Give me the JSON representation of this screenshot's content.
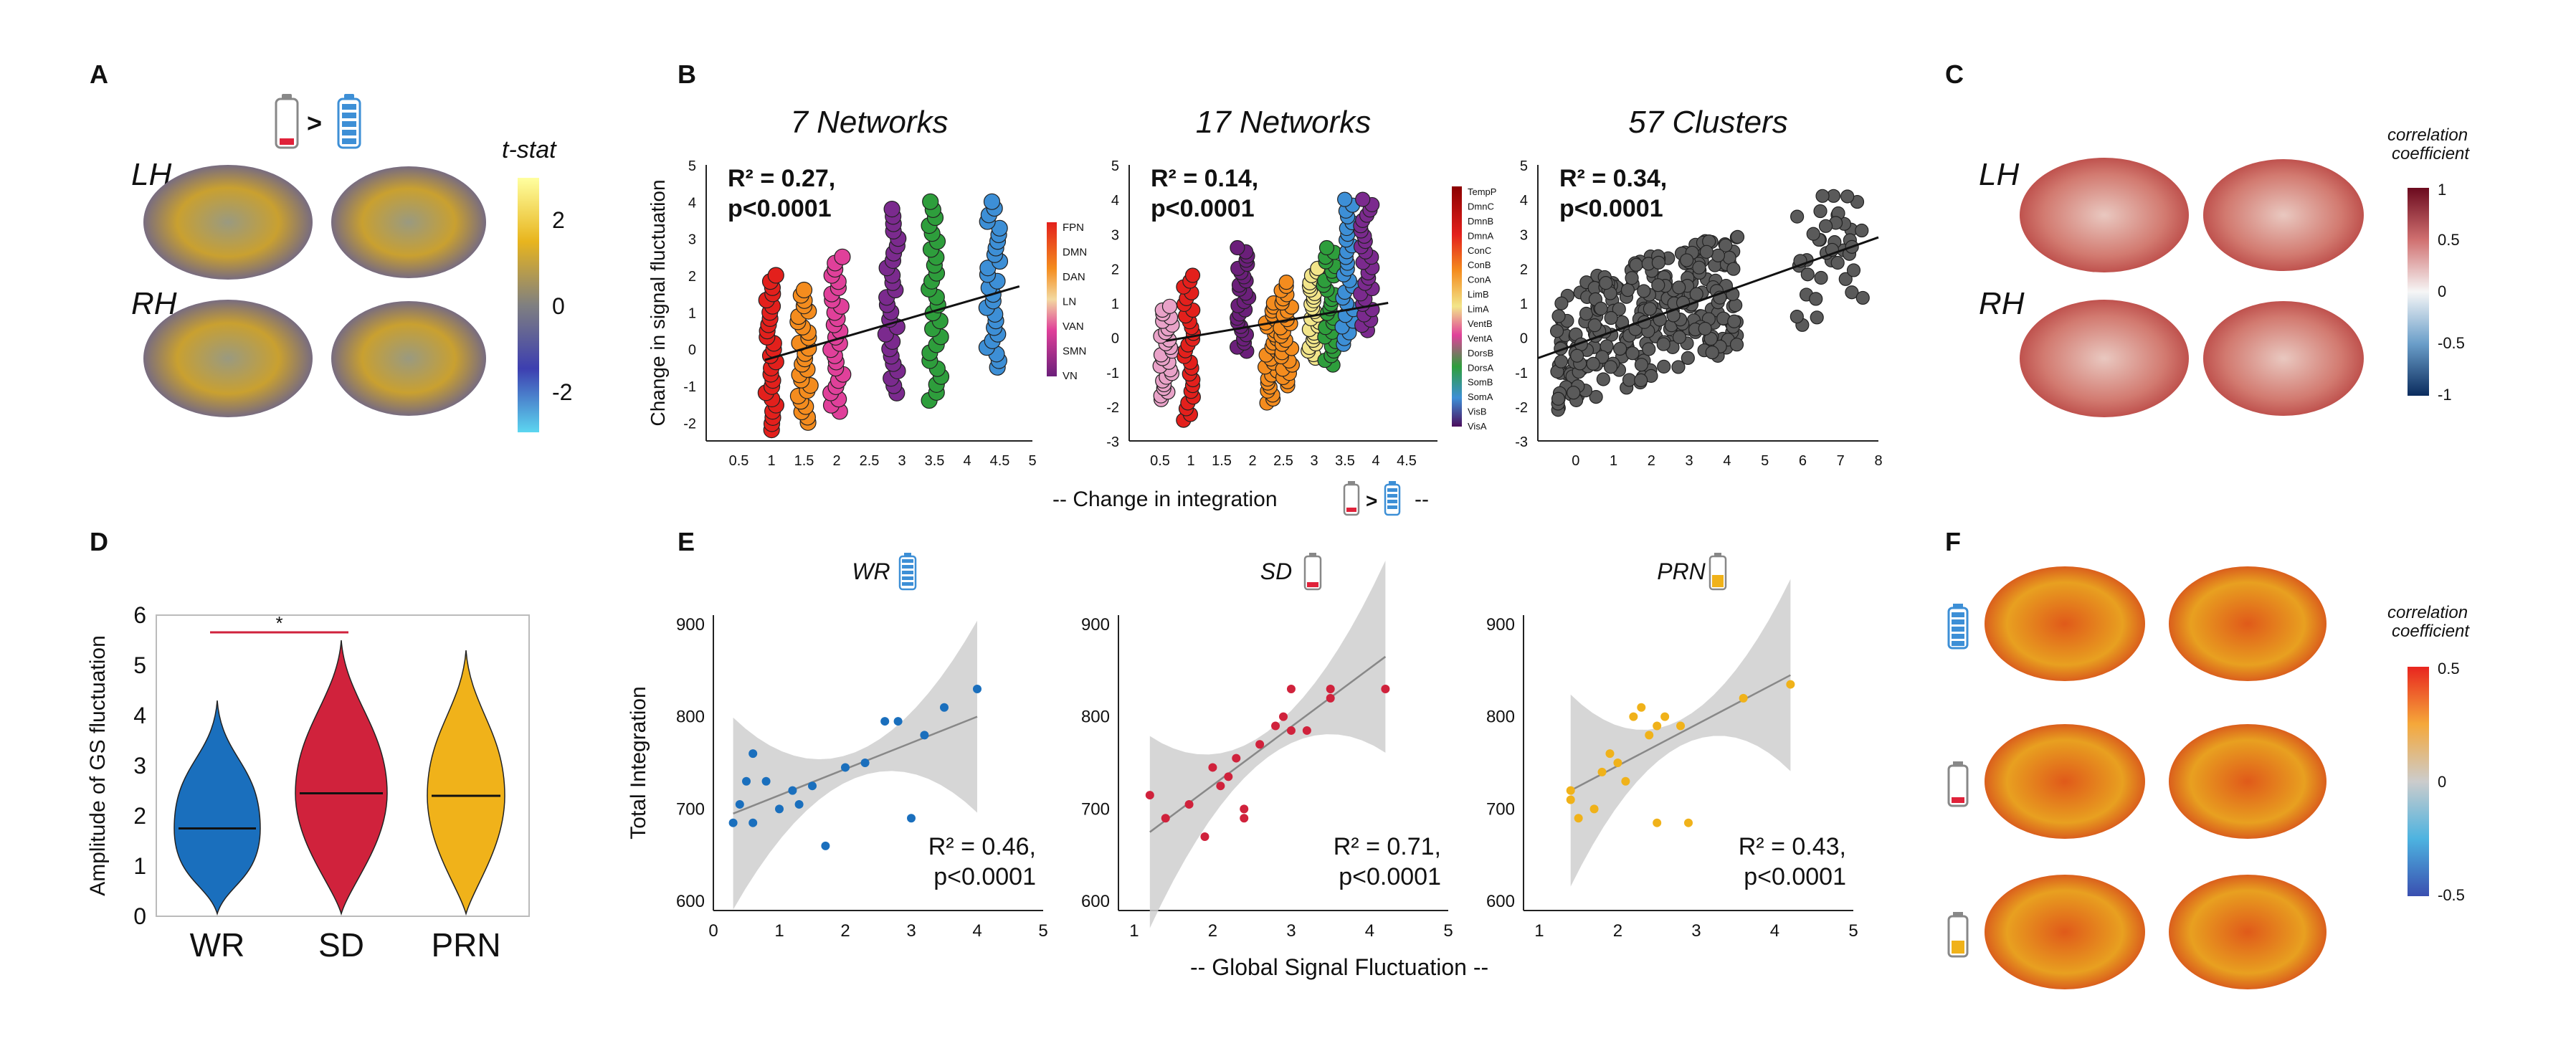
{
  "panels": {
    "A": {
      "letter": "A",
      "lh": "LH",
      "rh": "RH",
      "cbar_title": "t-stat",
      "cbar_ticks": [
        "2",
        "0",
        "-2"
      ]
    },
    "B": {
      "letter": "B",
      "x_caption": "-- Change in integration",
      "ylabel": "Change in signal fluctuation"
    },
    "C": {
      "letter": "C",
      "lh": "LH",
      "rh": "RH",
      "cbar_title_1": "correlation",
      "cbar_title_2": "coefficient",
      "cbar_ticks": [
        "1",
        "0.5",
        "0",
        "-0.5",
        "-1"
      ]
    },
    "D": {
      "letter": "D"
    },
    "E": {
      "letter": "E",
      "x_caption": "-- Global Signal Fluctuation --"
    },
    "F": {
      "letter": "F",
      "cbar_title_1": "correlation",
      "cbar_title_2": "coefficient",
      "cbar_ticks": [
        "0.5",
        "0",
        "-0.5"
      ]
    }
  },
  "symbols": {
    "gt": ">",
    "star": "*"
  },
  "colors": {
    "WR": "#1a6fbd",
    "SD": "#d0223c",
    "PRN": "#f0b21a",
    "battery_full": "#3d8fd6",
    "battery_low": "#e0223a",
    "battery_mid": "#f0b21a",
    "yeo7": [
      "#e3201c",
      "#f48c1e",
      "#e0409a",
      "#7b2a8e",
      "#2e9e3c",
      "#3d8fd6",
      "#6b1f7a"
    ],
    "scatter_gray": "#555555"
  },
  "chart_data": [
    {
      "type": "scatter",
      "title": "7 Networks",
      "ylabel": "Change in signal fluctuation",
      "xlabel": "-- Change in integration",
      "r2": "R² = 0.27,",
      "p": "p<0.0001",
      "xlim": [
        0,
        5
      ],
      "ylim": [
        -2.5,
        5
      ],
      "x_ticks": [
        "0.5",
        "1",
        "1.5",
        "2",
        "2.5",
        "3",
        "3.5",
        "4",
        "4.5",
        "5"
      ],
      "y_ticks": [
        "5",
        "4",
        "3",
        "2",
        "1",
        "0",
        "-1",
        "-2"
      ],
      "groups": [
        {
          "x": 1.0,
          "ymin": -2.2,
          "ymax": 2.0,
          "color": "#e3201c"
        },
        {
          "x": 1.5,
          "ymin": -2.0,
          "ymax": 1.6,
          "color": "#f48c1e"
        },
        {
          "x": 2.0,
          "ymin": -1.7,
          "ymax": 2.5,
          "color": "#e0409a"
        },
        {
          "x": 2.85,
          "ymin": -1.2,
          "ymax": 3.8,
          "color": "#7b2a8e"
        },
        {
          "x": 3.5,
          "ymin": -1.4,
          "ymax": 4.0,
          "color": "#2e9e3c"
        },
        {
          "x": 4.4,
          "ymin": -0.5,
          "ymax": 4.0,
          "color": "#3d8fd6"
        }
      ],
      "fit": [
        [
          0.9,
          -0.3
        ],
        [
          4.8,
          1.7
        ]
      ],
      "legend": [
        "FPN",
        "DMN",
        "DAN",
        "LN",
        "VAN",
        "SMN",
        "VN"
      ]
    },
    {
      "type": "scatter",
      "title": "17 Networks",
      "r2": "R² = 0.14,",
      "p": "p<0.0001",
      "xlim": [
        0,
        5
      ],
      "ylim": [
        -3,
        5
      ],
      "x_ticks": [
        "0.5",
        "1",
        "1.5",
        "2",
        "2.5",
        "3",
        "3.5",
        "4",
        "4.5"
      ],
      "y_ticks": [
        "5",
        "4",
        "3",
        "2",
        "1",
        "0",
        "-1",
        "-2",
        "-3"
      ],
      "groups": [
        {
          "x": 0.6,
          "ymin": -1.8,
          "ymax": 0.9,
          "color": "#e9a2c8"
        },
        {
          "x": 0.95,
          "ymin": -2.4,
          "ymax": 1.8,
          "color": "#e3201c"
        },
        {
          "x": 1.85,
          "ymin": -0.4,
          "ymax": 2.6,
          "color": "#6b1f7a"
        },
        {
          "x": 2.3,
          "ymin": -1.9,
          "ymax": 1.0,
          "color": "#f48c1e"
        },
        {
          "x": 2.55,
          "ymin": -1.4,
          "ymax": 1.6,
          "color": "#f48c1e"
        },
        {
          "x": 3.0,
          "ymin": -0.6,
          "ymax": 2.0,
          "color": "#f2e58a"
        },
        {
          "x": 3.25,
          "ymin": -0.8,
          "ymax": 2.6,
          "color": "#2e9e3c"
        },
        {
          "x": 3.55,
          "ymin": -0.2,
          "ymax": 4.0,
          "color": "#3d8fd6"
        },
        {
          "x": 3.85,
          "ymin": 0.2,
          "ymax": 4.0,
          "color": "#7b2a8e"
        }
      ],
      "fit": [
        [
          0.6,
          -0.1
        ],
        [
          4.2,
          1.0
        ]
      ],
      "legend": [
        "TempP",
        "DmnC",
        "DmnB",
        "DmnA",
        "ConC",
        "ConB",
        "ConA",
        "LimB",
        "LimA",
        "VentB",
        "VentA",
        "DorsB",
        "DorsA",
        "SomB",
        "SomA",
        "VisB",
        "VisA"
      ]
    },
    {
      "type": "scatter",
      "title": "57 Clusters",
      "r2": "R² = 0.34,",
      "p": "p<0.0001",
      "xlim": [
        -1,
        8
      ],
      "ylim": [
        -3,
        5
      ],
      "x_ticks": [
        "0",
        "1",
        "2",
        "3",
        "4",
        "5",
        "6",
        "7",
        "8"
      ],
      "y_ticks": [
        "5",
        "4",
        "3",
        "2",
        "1",
        "0",
        "-1",
        "-2",
        "-3"
      ],
      "fit": [
        [
          -1,
          -0.6
        ],
        [
          8,
          2.9
        ]
      ]
    },
    {
      "type": "violin",
      "ylabel": "Amplitude of GS fluctuation",
      "categories": [
        "WR",
        "SD",
        "PRN"
      ],
      "medians": [
        1.75,
        2.45,
        2.4
      ],
      "ranges": [
        [
          0,
          4.3
        ],
        [
          0,
          5.5
        ],
        [
          0,
          5.3
        ]
      ],
      "ylim": [
        0,
        6
      ],
      "y_ticks": [
        "6",
        "5",
        "4",
        "3",
        "2",
        "1",
        "0"
      ]
    },
    {
      "type": "scatter",
      "title": "WR",
      "ylabel": "Total Integration",
      "r2": "R² = 0.46,",
      "p": "p<0.0001",
      "xlim": [
        0,
        5
      ],
      "ylim": [
        590,
        910
      ],
      "x_ticks": [
        "0",
        "1",
        "2",
        "3",
        "4",
        "5"
      ],
      "y_ticks": [
        "900",
        "800",
        "700",
        "600"
      ],
      "points": [
        [
          0.3,
          685
        ],
        [
          0.4,
          705
        ],
        [
          0.5,
          730
        ],
        [
          0.6,
          685
        ],
        [
          0.6,
          760
        ],
        [
          0.8,
          730
        ],
        [
          1.0,
          700
        ],
        [
          1.2,
          720
        ],
        [
          1.3,
          705
        ],
        [
          1.5,
          725
        ],
        [
          1.7,
          660
        ],
        [
          2.0,
          745
        ],
        [
          2.3,
          750
        ],
        [
          2.6,
          795
        ],
        [
          2.8,
          795
        ],
        [
          3.0,
          690
        ],
        [
          3.2,
          780
        ],
        [
          3.5,
          810
        ],
        [
          4.0,
          830
        ]
      ],
      "fit": [
        [
          0.3,
          695
        ],
        [
          4.0,
          800
        ]
      ]
    },
    {
      "type": "scatter",
      "title": "SD",
      "xlabel": "-- Global Signal Fluctuation --",
      "r2": "R² = 0.71,",
      "p": "p<0.0001",
      "xlim": [
        0.8,
        5
      ],
      "ylim": [
        590,
        910
      ],
      "x_ticks": [
        "1",
        "2",
        "3",
        "4",
        "5"
      ],
      "y_ticks": [
        "900",
        "800",
        "700",
        "600"
      ],
      "points": [
        [
          1.2,
          715
        ],
        [
          1.4,
          690
        ],
        [
          1.7,
          705
        ],
        [
          1.9,
          670
        ],
        [
          2.0,
          745
        ],
        [
          2.1,
          725
        ],
        [
          2.2,
          735
        ],
        [
          2.3,
          755
        ],
        [
          2.4,
          690
        ],
        [
          2.4,
          700
        ],
        [
          2.6,
          770
        ],
        [
          2.8,
          790
        ],
        [
          2.9,
          800
        ],
        [
          3.0,
          785
        ],
        [
          3.0,
          830
        ],
        [
          3.2,
          785
        ],
        [
          3.5,
          820
        ],
        [
          3.5,
          830
        ],
        [
          4.2,
          830
        ]
      ],
      "fit": [
        [
          1.2,
          675
        ],
        [
          4.2,
          865
        ]
      ]
    },
    {
      "type": "scatter",
      "title": "PRN",
      "r2": "R² = 0.43,",
      "p": "p<0.0001",
      "xlim": [
        0.8,
        5
      ],
      "ylim": [
        590,
        910
      ],
      "x_ticks": [
        "1",
        "2",
        "3",
        "4",
        "5"
      ],
      "y_ticks": [
        "900",
        "800",
        "700",
        "600"
      ],
      "points": [
        [
          1.4,
          720
        ],
        [
          1.4,
          710
        ],
        [
          1.5,
          690
        ],
        [
          1.7,
          700
        ],
        [
          1.8,
          740
        ],
        [
          1.9,
          760
        ],
        [
          2.0,
          750
        ],
        [
          2.1,
          730
        ],
        [
          2.2,
          800
        ],
        [
          2.3,
          810
        ],
        [
          2.4,
          780
        ],
        [
          2.5,
          790
        ],
        [
          2.5,
          685
        ],
        [
          2.6,
          800
        ],
        [
          2.8,
          790
        ],
        [
          2.9,
          685
        ],
        [
          3.6,
          820
        ],
        [
          4.2,
          835
        ]
      ],
      "fit": [
        [
          1.4,
          720
        ],
        [
          4.2,
          845
        ]
      ]
    }
  ]
}
